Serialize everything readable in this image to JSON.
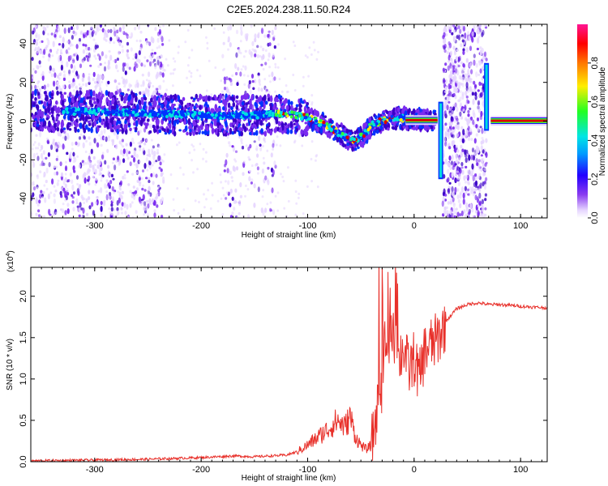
{
  "title": "C2E5.2024.238.11.50.R24",
  "chart_data": [
    {
      "type": "heatmap",
      "xlabel": "Height of straight line (km)",
      "ylabel": "Frequency (Hz)",
      "xlim": [
        -360,
        125
      ],
      "ylim": [
        -50,
        50
      ],
      "xticks": [
        -300,
        -200,
        -100,
        0,
        100
      ],
      "yticks": [
        -40,
        -20,
        0,
        20,
        40
      ],
      "colorbar": {
        "label": "Normalized spectral amplitude",
        "range": [
          0,
          1
        ],
        "ticks": [
          "0.0",
          "0.2",
          "0.4",
          "0.6",
          "0.8"
        ]
      },
      "ridge": {
        "x": [
          -360,
          -300,
          -250,
          -200,
          -150,
          -120,
          -100,
          -80,
          -65,
          -55,
          -45,
          -40,
          -30,
          -20,
          -10,
          0,
          10,
          20,
          25,
          70,
          80,
          100,
          125
        ],
        "y": [
          5,
          5,
          4,
          3,
          3,
          4,
          2,
          -3,
          -8,
          -10,
          -6,
          -2,
          0,
          1,
          1.5,
          1,
          0.5,
          0.3,
          0.2,
          0.2,
          0.2,
          0.2,
          0.2
        ]
      },
      "noise_bands": [
        {
          "x": [
            -360,
            -235
          ]
        },
        {
          "x": [
            -180,
            -130
          ]
        },
        {
          "x": [
            27,
            68
          ]
        }
      ],
      "colors": [
        "#e6d5ff",
        "#7b2cf0",
        "#3a00c8",
        "#0033ff",
        "#00e0e0",
        "#33ff33",
        "#ffee00",
        "#ff6600",
        "#dd0000",
        "#ff0080"
      ]
    },
    {
      "type": "line",
      "xlabel": "Height of straight line (km)",
      "ylabel": "SNR (10 * v/v)",
      "multiplier": "(x10",
      "multiplier_exp": "4",
      "multiplier_close": ")",
      "xlim": [
        -360,
        125
      ],
      "ylim": [
        0,
        2.35
      ],
      "xticks": [
        -300,
        -200,
        -100,
        0,
        100
      ],
      "yticks": [
        "0.0",
        "0.5",
        "1.0",
        "1.5",
        "2.0"
      ],
      "color": "#e8302a",
      "series": [
        {
          "x": [
            -360,
            -300,
            -250,
            -200,
            -170,
            -150,
            -120,
            -110,
            -100,
            -90,
            -80,
            -72,
            -65,
            -60,
            -55,
            -50,
            -45,
            -40,
            -35,
            -30,
            -27,
            -25,
            -20,
            -15,
            -10,
            -5,
            0,
            5,
            10,
            15,
            20,
            25,
            30,
            40,
            50,
            60,
            70,
            80,
            90,
            100,
            110,
            125
          ],
          "y": [
            0.01,
            0.02,
            0.03,
            0.05,
            0.07,
            0.06,
            0.08,
            0.12,
            0.2,
            0.3,
            0.4,
            0.5,
            0.42,
            0.55,
            0.3,
            0.2,
            0.15,
            0.2,
            0.6,
            0.95,
            1.5,
            1.3,
            1.5,
            1.2,
            1.4,
            1.1,
            1.25,
            1.0,
            1.35,
            1.4,
            1.45,
            1.55,
            1.7,
            1.85,
            1.9,
            1.92,
            1.9,
            1.9,
            1.89,
            1.88,
            1.87,
            1.86
          ]
        }
      ]
    }
  ]
}
